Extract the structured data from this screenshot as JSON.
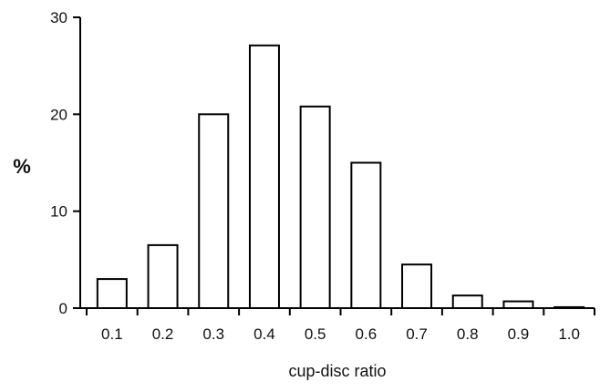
{
  "chart_data": {
    "type": "bar",
    "categories": [
      "0.1",
      "0.2",
      "0.3",
      "0.4",
      "0.5",
      "0.6",
      "0.7",
      "0.8",
      "0.9",
      "1.0"
    ],
    "values": [
      3.0,
      6.5,
      20.0,
      27.1,
      20.8,
      15.0,
      4.5,
      1.3,
      0.7,
      0.1
    ],
    "title": "",
    "xlabel": "cup-disc ratio",
    "ylabel": "%",
    "ylim": [
      0,
      30
    ],
    "yticks": [
      "0",
      "10",
      "20",
      "30"
    ],
    "grid": false,
    "legend": "none",
    "bar_fill": "#ffffff",
    "bar_stroke": "#000000"
  }
}
